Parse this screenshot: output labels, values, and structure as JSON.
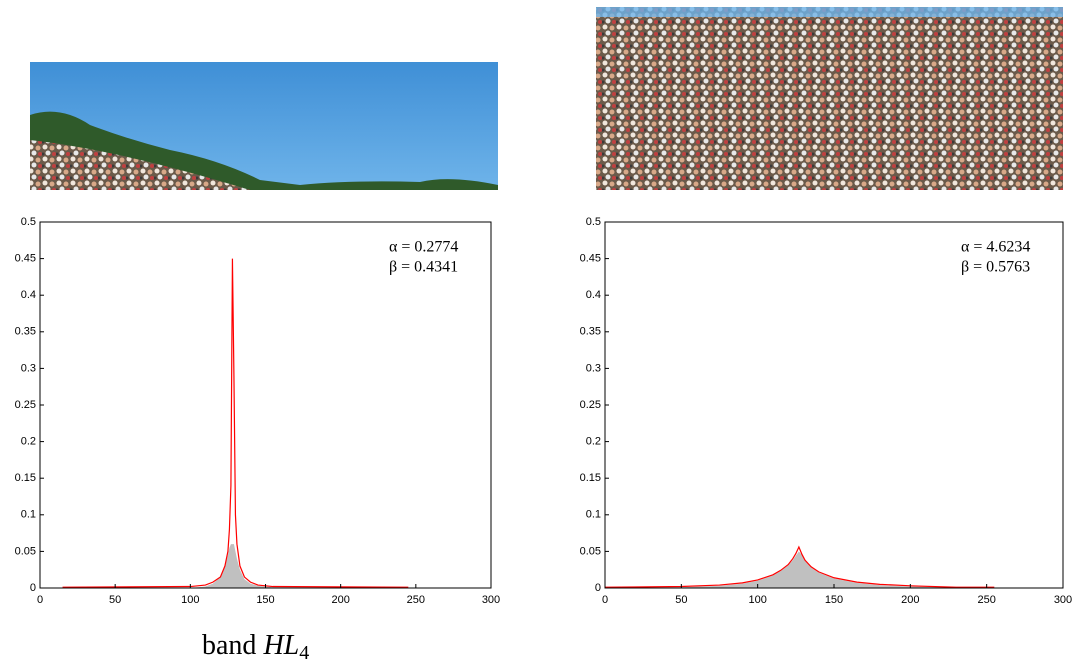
{
  "chart_data": [
    {
      "type": "line",
      "x": [
        15,
        100,
        110,
        115,
        120,
        123,
        125,
        126,
        127,
        128,
        129,
        130,
        131,
        133,
        136,
        140,
        145,
        155,
        245
      ],
      "series": [
        {
          "kind": "area",
          "color": "#c0c0c0",
          "values": [
            0,
            0,
            0.002,
            0.006,
            0.015,
            0.03,
            0.045,
            0.055,
            0.06,
            0.06,
            0.06,
            0.05,
            0.04,
            0.025,
            0.012,
            0.006,
            0.003,
            0.001,
            0
          ]
        },
        {
          "kind": "line",
          "color": "#ff0000",
          "values": [
            0.001,
            0.002,
            0.004,
            0.008,
            0.015,
            0.03,
            0.05,
            0.08,
            0.14,
            0.45,
            0.29,
            0.1,
            0.06,
            0.03,
            0.015,
            0.008,
            0.004,
            0.002,
            0.001
          ]
        }
      ],
      "xlim": [
        0,
        300
      ],
      "xticks": [
        0,
        50,
        100,
        150,
        200,
        250,
        300
      ],
      "ylim": [
        0,
        0.5
      ],
      "yticks": [
        0,
        0.05,
        0.1,
        0.15,
        0.2,
        0.25,
        0.3,
        0.35,
        0.4,
        0.45,
        0.5
      ],
      "annotations": [
        "α = 0.2774",
        "β = 0.4341"
      ]
    },
    {
      "type": "line",
      "x": [
        0,
        50,
        75,
        90,
        100,
        110,
        115,
        120,
        123,
        125,
        127,
        129,
        131,
        135,
        140,
        150,
        165,
        180,
        200,
        230,
        255
      ],
      "series": [
        {
          "kind": "area",
          "color": "#c0c0c0",
          "values": [
            0,
            0.001,
            0.003,
            0.006,
            0.01,
            0.017,
            0.023,
            0.031,
            0.038,
            0.044,
            0.05,
            0.045,
            0.037,
            0.028,
            0.021,
            0.013,
            0.007,
            0.004,
            0.002,
            0.001,
            0
          ]
        },
        {
          "kind": "line",
          "color": "#ff0000",
          "values": [
            0.001,
            0.002,
            0.004,
            0.007,
            0.011,
            0.018,
            0.024,
            0.032,
            0.04,
            0.047,
            0.056,
            0.046,
            0.038,
            0.029,
            0.022,
            0.014,
            0.008,
            0.005,
            0.003,
            0.001,
            0.001
          ]
        }
      ],
      "xlim": [
        0,
        300
      ],
      "xticks": [
        0,
        50,
        100,
        150,
        200,
        250,
        300
      ],
      "ylim": [
        0,
        0.5
      ],
      "yticks": [
        0,
        0.05,
        0.1,
        0.15,
        0.2,
        0.25,
        0.3,
        0.35,
        0.4,
        0.45,
        0.5
      ],
      "annotations": [
        "α = 4.6234",
        "β = 0.5763"
      ]
    }
  ],
  "caption": {
    "text": "band",
    "symbol": "HL",
    "subscript": "4"
  }
}
